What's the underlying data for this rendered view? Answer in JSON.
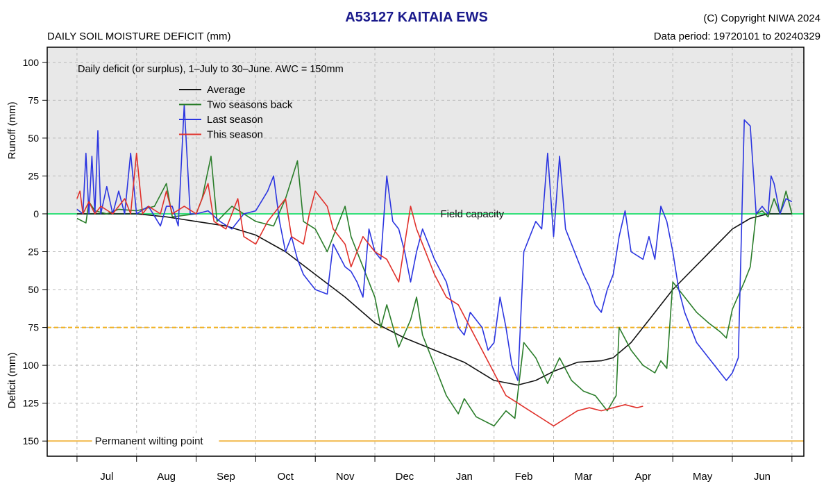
{
  "header": {
    "title": "A53127  KAITAIA EWS",
    "subtitle": "DAILY SOIL MOISTURE DEFICIT (mm)",
    "copyright": "(C) Copyright NIWA  2024",
    "data_period": "Data period:  19720101  to  20240329"
  },
  "chart_data": {
    "type": "line",
    "note": "Daily deficit (or surplus), 1–July to 30–June.  AWC = 150mm",
    "ylabel_top": "Runoff (mm)",
    "ylabel_bottom": "Deficit (mm)",
    "y_direction": "deficit plotted downward; runoff (surplus) plotted upward",
    "ylim": [
      -110,
      160
    ],
    "y_ticks": [
      {
        "value": -100,
        "label": "100"
      },
      {
        "value": -75,
        "label": "75"
      },
      {
        "value": -50,
        "label": "50"
      },
      {
        "value": -25,
        "label": "25"
      },
      {
        "value": 0,
        "label": "0"
      },
      {
        "value": 25,
        "label": "25"
      },
      {
        "value": 50,
        "label": "50"
      },
      {
        "value": 75,
        "label": "75"
      },
      {
        "value": 100,
        "label": "100"
      },
      {
        "value": 125,
        "label": "125"
      },
      {
        "value": 150,
        "label": "150"
      }
    ],
    "x_unit": "months from 1 July",
    "xlim": [
      -0.5,
      12.2
    ],
    "months": [
      "Jul",
      "Aug",
      "Sep",
      "Oct",
      "Nov",
      "Dec",
      "Jan",
      "Feb",
      "Mar",
      "Apr",
      "May",
      "Jun"
    ],
    "reference_lines": [
      {
        "name": "Field capacity",
        "value": 0,
        "color": "#33e07a",
        "style": "solid",
        "label_x": 6.1
      },
      {
        "name": "",
        "value": 75,
        "color": "#f0b020",
        "style": "dashed"
      },
      {
        "name": "Permanent wilting point",
        "value": 150,
        "color": "#f2bc50",
        "style": "solid",
        "label_x": 0.3
      }
    ],
    "legend_placement": "top-left",
    "series": [
      {
        "name": "Average",
        "color": "#111111",
        "points": [
          [
            0,
            0
          ],
          [
            1,
            0
          ],
          [
            1.5,
            2
          ],
          [
            2,
            5
          ],
          [
            2.5,
            8
          ],
          [
            3,
            14
          ],
          [
            3.5,
            25
          ],
          [
            4,
            40
          ],
          [
            4.5,
            55
          ],
          [
            5,
            72
          ],
          [
            5.5,
            82
          ],
          [
            6,
            90
          ],
          [
            6.5,
            98
          ],
          [
            7,
            110
          ],
          [
            7.4,
            113
          ],
          [
            7.7,
            110
          ],
          [
            8,
            104
          ],
          [
            8.4,
            98
          ],
          [
            8.8,
            97
          ],
          [
            9,
            95
          ],
          [
            9.3,
            85
          ],
          [
            9.6,
            70
          ],
          [
            10,
            50
          ],
          [
            10.5,
            30
          ],
          [
            11,
            10
          ],
          [
            11.3,
            3
          ],
          [
            11.6,
            0
          ],
          [
            12,
            0
          ]
        ]
      },
      {
        "name": "Two seasons back",
        "color": "#2a7d2a",
        "points": [
          [
            0,
            3
          ],
          [
            0.15,
            6
          ],
          [
            0.2,
            -8
          ],
          [
            0.3,
            -2
          ],
          [
            0.5,
            0
          ],
          [
            0.7,
            -3
          ],
          [
            1,
            -2
          ],
          [
            1.3,
            -5
          ],
          [
            1.5,
            -20
          ],
          [
            1.6,
            2
          ],
          [
            2,
            0
          ],
          [
            2.1,
            -10
          ],
          [
            2.25,
            -38
          ],
          [
            2.35,
            5
          ],
          [
            2.6,
            -5
          ],
          [
            3,
            5
          ],
          [
            3.3,
            8
          ],
          [
            3.5,
            -10
          ],
          [
            3.7,
            -35
          ],
          [
            3.8,
            5
          ],
          [
            4,
            10
          ],
          [
            4.2,
            25
          ],
          [
            4.4,
            5
          ],
          [
            4.5,
            -5
          ],
          [
            4.6,
            15
          ],
          [
            4.8,
            35
          ],
          [
            5,
            55
          ],
          [
            5.1,
            75
          ],
          [
            5.2,
            60
          ],
          [
            5.4,
            88
          ],
          [
            5.6,
            70
          ],
          [
            5.7,
            55
          ],
          [
            5.8,
            80
          ],
          [
            6,
            100
          ],
          [
            6.2,
            120
          ],
          [
            6.4,
            132
          ],
          [
            6.5,
            122
          ],
          [
            6.7,
            134
          ],
          [
            7,
            140
          ],
          [
            7.2,
            130
          ],
          [
            7.35,
            135
          ],
          [
            7.5,
            85
          ],
          [
            7.7,
            95
          ],
          [
            7.9,
            112
          ],
          [
            8.1,
            95
          ],
          [
            8.3,
            110
          ],
          [
            8.5,
            117
          ],
          [
            8.7,
            120
          ],
          [
            8.9,
            130
          ],
          [
            9.05,
            120
          ],
          [
            9.1,
            75
          ],
          [
            9.3,
            90
          ],
          [
            9.5,
            100
          ],
          [
            9.7,
            105
          ],
          [
            9.8,
            97
          ],
          [
            9.9,
            102
          ],
          [
            10,
            45
          ],
          [
            10.2,
            55
          ],
          [
            10.4,
            65
          ],
          [
            10.6,
            72
          ],
          [
            10.8,
            78
          ],
          [
            10.9,
            82
          ],
          [
            11,
            63
          ],
          [
            11.2,
            45
          ],
          [
            11.3,
            35
          ],
          [
            11.4,
            0
          ],
          [
            11.5,
            -2
          ],
          [
            11.6,
            2
          ],
          [
            11.7,
            -10
          ],
          [
            11.8,
            0
          ],
          [
            11.9,
            -15
          ],
          [
            12,
            0
          ]
        ]
      },
      {
        "name": "Last season",
        "color": "#2b35e0",
        "points": [
          [
            0,
            -3
          ],
          [
            0.1,
            0
          ],
          [
            0.15,
            -40
          ],
          [
            0.2,
            0
          ],
          [
            0.25,
            -38
          ],
          [
            0.3,
            0
          ],
          [
            0.35,
            -55
          ],
          [
            0.4,
            0
          ],
          [
            0.5,
            -18
          ],
          [
            0.6,
            0
          ],
          [
            0.7,
            -15
          ],
          [
            0.8,
            0
          ],
          [
            0.9,
            -40
          ],
          [
            1,
            0
          ],
          [
            1.2,
            -5
          ],
          [
            1.4,
            8
          ],
          [
            1.5,
            -5
          ],
          [
            1.6,
            -5
          ],
          [
            1.7,
            8
          ],
          [
            1.8,
            -72
          ],
          [
            1.9,
            0
          ],
          [
            2,
            0
          ],
          [
            2.2,
            -2
          ],
          [
            2.4,
            5
          ],
          [
            2.6,
            10
          ],
          [
            2.8,
            0
          ],
          [
            3,
            -2
          ],
          [
            3.2,
            -15
          ],
          [
            3.3,
            -25
          ],
          [
            3.4,
            5
          ],
          [
            3.5,
            25
          ],
          [
            3.6,
            15
          ],
          [
            3.7,
            30
          ],
          [
            3.8,
            40
          ],
          [
            3.9,
            45
          ],
          [
            4,
            50
          ],
          [
            4.2,
            53
          ],
          [
            4.3,
            20
          ],
          [
            4.5,
            35
          ],
          [
            4.6,
            38
          ],
          [
            4.7,
            45
          ],
          [
            4.8,
            55
          ],
          [
            4.9,
            10
          ],
          [
            5,
            25
          ],
          [
            5.1,
            30
          ],
          [
            5.2,
            -25
          ],
          [
            5.3,
            5
          ],
          [
            5.4,
            10
          ],
          [
            5.5,
            25
          ],
          [
            5.6,
            45
          ],
          [
            5.7,
            25
          ],
          [
            5.8,
            10
          ],
          [
            5.9,
            20
          ],
          [
            6,
            30
          ],
          [
            6.2,
            45
          ],
          [
            6.3,
            60
          ],
          [
            6.4,
            75
          ],
          [
            6.5,
            80
          ],
          [
            6.6,
            65
          ],
          [
            6.8,
            75
          ],
          [
            6.9,
            90
          ],
          [
            7,
            85
          ],
          [
            7.1,
            55
          ],
          [
            7.2,
            75
          ],
          [
            7.3,
            100
          ],
          [
            7.4,
            110
          ],
          [
            7.5,
            25
          ],
          [
            7.6,
            15
          ],
          [
            7.7,
            5
          ],
          [
            7.8,
            10
          ],
          [
            7.9,
            -40
          ],
          [
            8,
            15
          ],
          [
            8.1,
            -38
          ],
          [
            8.2,
            10
          ],
          [
            8.3,
            20
          ],
          [
            8.4,
            30
          ],
          [
            8.5,
            40
          ],
          [
            8.6,
            48
          ],
          [
            8.7,
            60
          ],
          [
            8.8,
            65
          ],
          [
            8.9,
            50
          ],
          [
            9,
            40
          ],
          [
            9.1,
            15
          ],
          [
            9.2,
            -2
          ],
          [
            9.3,
            25
          ],
          [
            9.5,
            30
          ],
          [
            9.6,
            15
          ],
          [
            9.7,
            30
          ],
          [
            9.8,
            -5
          ],
          [
            9.9,
            5
          ],
          [
            10,
            25
          ],
          [
            10.1,
            50
          ],
          [
            10.2,
            65
          ],
          [
            10.3,
            75
          ],
          [
            10.4,
            85
          ],
          [
            10.5,
            90
          ],
          [
            10.6,
            95
          ],
          [
            10.7,
            100
          ],
          [
            10.8,
            105
          ],
          [
            10.9,
            110
          ],
          [
            11,
            105
          ],
          [
            11.1,
            95
          ],
          [
            11.2,
            -62
          ],
          [
            11.3,
            -58
          ],
          [
            11.4,
            0
          ],
          [
            11.5,
            -5
          ],
          [
            11.6,
            0
          ],
          [
            11.65,
            -25
          ],
          [
            11.7,
            -20
          ],
          [
            11.8,
            0
          ],
          [
            11.9,
            -10
          ],
          [
            12,
            -8
          ]
        ]
      },
      {
        "name": "This season",
        "color": "#e0302a",
        "points": [
          [
            0,
            -10
          ],
          [
            0.05,
            -15
          ],
          [
            0.1,
            0
          ],
          [
            0.2,
            -8
          ],
          [
            0.3,
            0
          ],
          [
            0.4,
            -5
          ],
          [
            0.6,
            0
          ],
          [
            0.8,
            -10
          ],
          [
            0.9,
            0
          ],
          [
            1,
            -40
          ],
          [
            1.1,
            0
          ],
          [
            1.2,
            -5
          ],
          [
            1.4,
            0
          ],
          [
            1.5,
            -15
          ],
          [
            1.6,
            0
          ],
          [
            1.8,
            -5
          ],
          [
            2,
            0
          ],
          [
            2.2,
            -20
          ],
          [
            2.3,
            5
          ],
          [
            2.5,
            10
          ],
          [
            2.7,
            -10
          ],
          [
            2.8,
            15
          ],
          [
            3,
            20
          ],
          [
            3.2,
            5
          ],
          [
            3.4,
            -5
          ],
          [
            3.5,
            -10
          ],
          [
            3.6,
            15
          ],
          [
            3.8,
            20
          ],
          [
            3.9,
            0
          ],
          [
            4,
            -15
          ],
          [
            4.2,
            -5
          ],
          [
            4.3,
            10
          ],
          [
            4.5,
            20
          ],
          [
            4.6,
            35
          ],
          [
            4.8,
            15
          ],
          [
            5,
            25
          ],
          [
            5.2,
            30
          ],
          [
            5.4,
            45
          ],
          [
            5.6,
            -5
          ],
          [
            5.7,
            10
          ],
          [
            5.8,
            20
          ],
          [
            6,
            40
          ],
          [
            6.2,
            55
          ],
          [
            6.4,
            60
          ],
          [
            6.6,
            75
          ],
          [
            6.8,
            90
          ],
          [
            7,
            105
          ],
          [
            7.2,
            120
          ],
          [
            7.4,
            125
          ],
          [
            7.6,
            130
          ],
          [
            7.8,
            135
          ],
          [
            8,
            140
          ],
          [
            8.2,
            135
          ],
          [
            8.4,
            130
          ],
          [
            8.6,
            128
          ],
          [
            8.8,
            130
          ],
          [
            9,
            128
          ],
          [
            9.2,
            126
          ],
          [
            9.4,
            128
          ],
          [
            9.5,
            127
          ]
        ]
      }
    ]
  }
}
